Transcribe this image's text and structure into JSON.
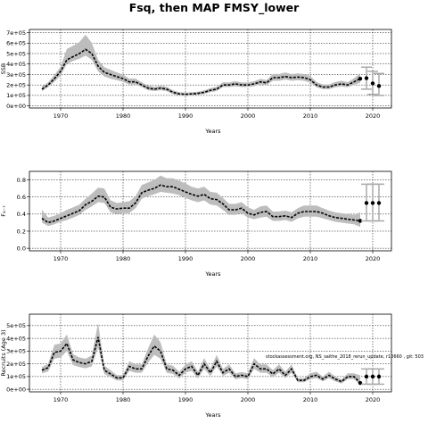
{
  "title": "Fsq, then MAP FMSY_lower",
  "annotation": "stockassessment.org, NS_saithe_2018_rerun_update, r10660 , git: 503",
  "colors": {
    "band": "#bdbdbd",
    "line": "#000000",
    "dots": "#000000",
    "interval": "#aaaaaa"
  },
  "chart_data": [
    {
      "type": "line",
      "ylabel": "SSB",
      "xlabel": "Years",
      "xlim": [
        1965,
        2023
      ],
      "ylim": [
        -20000,
        730000
      ],
      "xticks": [
        1970,
        1980,
        1990,
        2000,
        2010,
        2020
      ],
      "yticks": [
        0,
        100000,
        200000,
        300000,
        400000,
        500000,
        600000,
        700000
      ],
      "ytick_labels": [
        "0e+00",
        "1e+05",
        "2e+05",
        "3e+05",
        "4e+05",
        "5e+05",
        "6e+05",
        "7e+05"
      ],
      "grid": true,
      "x": [
        1967,
        1968,
        1969,
        1970,
        1971,
        1972,
        1973,
        1974,
        1975,
        1976,
        1977,
        1978,
        1979,
        1980,
        1981,
        1982,
        1983,
        1984,
        1985,
        1986,
        1987,
        1988,
        1989,
        1990,
        1991,
        1992,
        1993,
        1994,
        1995,
        1996,
        1997,
        1998,
        1999,
        2000,
        2001,
        2002,
        2003,
        2004,
        2005,
        2006,
        2007,
        2008,
        2009,
        2010,
        2011,
        2012,
        2013,
        2014,
        2015,
        2016,
        2017,
        2018
      ],
      "values": [
        160000,
        200000,
        260000,
        330000,
        440000,
        470000,
        500000,
        540000,
        500000,
        380000,
        320000,
        300000,
        280000,
        260000,
        230000,
        230000,
        200000,
        170000,
        160000,
        170000,
        160000,
        130000,
        115000,
        110000,
        115000,
        120000,
        130000,
        150000,
        160000,
        200000,
        200000,
        210000,
        200000,
        200000,
        210000,
        230000,
        220000,
        270000,
        270000,
        280000,
        270000,
        275000,
        270000,
        250000,
        200000,
        180000,
        180000,
        200000,
        210000,
        200000,
        230000,
        260000
      ],
      "lower": [
        140000,
        180000,
        230000,
        290000,
        400000,
        430000,
        450000,
        480000,
        440000,
        330000,
        280000,
        260000,
        245000,
        230000,
        205000,
        205000,
        180000,
        150000,
        142000,
        150000,
        140000,
        112000,
        100000,
        95000,
        100000,
        105000,
        115000,
        132000,
        142000,
        180000,
        180000,
        188000,
        180000,
        180000,
        188000,
        205000,
        198000,
        240000,
        240000,
        250000,
        240000,
        245000,
        240000,
        222000,
        178000,
        160000,
        160000,
        178000,
        185000,
        178000,
        200000,
        220000
      ],
      "upper": [
        185000,
        225000,
        295000,
        375000,
        545000,
        575000,
        610000,
        680000,
        600000,
        440000,
        370000,
        345000,
        320000,
        300000,
        260000,
        260000,
        225000,
        195000,
        182000,
        192000,
        182000,
        150000,
        132000,
        126000,
        130000,
        136000,
        148000,
        170000,
        182000,
        225000,
        224000,
        236000,
        224000,
        224000,
        236000,
        258000,
        246000,
        305000,
        305000,
        318000,
        304000,
        310000,
        305000,
        285000,
        228000,
        205000,
        205000,
        228000,
        240000,
        226000,
        265000,
        310000
      ],
      "forecast": {
        "x": [
          2019,
          2020,
          2021
        ],
        "values": [
          265000,
          215000,
          190000
        ],
        "lower": [
          160000,
          110000,
          100000
        ],
        "upper": [
          370000,
          330000,
          310000
        ]
      }
    },
    {
      "type": "line",
      "ylabel": "F₄₋₇",
      "xlabel": "Years",
      "xlim": [
        1965,
        2023
      ],
      "ylim": [
        -0.03,
        0.9
      ],
      "xticks": [
        1970,
        1980,
        1990,
        2000,
        2010,
        2020
      ],
      "yticks": [
        0.0,
        0.2,
        0.4,
        0.6,
        0.8
      ],
      "ytick_labels": [
        "0.0",
        "0.2",
        "0.4",
        "0.6",
        "0.8"
      ],
      "grid": true,
      "x": [
        1967,
        1968,
        1969,
        1970,
        1971,
        1972,
        1973,
        1974,
        1975,
        1976,
        1977,
        1978,
        1979,
        1980,
        1981,
        1982,
        1983,
        1984,
        1985,
        1986,
        1987,
        1988,
        1989,
        1990,
        1991,
        1992,
        1993,
        1994,
        1995,
        1996,
        1997,
        1998,
        1999,
        2000,
        2001,
        2002,
        2003,
        2004,
        2005,
        2006,
        2007,
        2008,
        2009,
        2010,
        2011,
        2012,
        2013,
        2014,
        2015,
        2016,
        2017,
        2018
      ],
      "values": [
        0.35,
        0.3,
        0.32,
        0.35,
        0.38,
        0.41,
        0.44,
        0.51,
        0.55,
        0.61,
        0.6,
        0.48,
        0.46,
        0.47,
        0.47,
        0.53,
        0.65,
        0.68,
        0.7,
        0.74,
        0.72,
        0.72,
        0.69,
        0.66,
        0.63,
        0.61,
        0.63,
        0.58,
        0.57,
        0.52,
        0.45,
        0.45,
        0.47,
        0.41,
        0.39,
        0.42,
        0.43,
        0.37,
        0.37,
        0.38,
        0.36,
        0.41,
        0.43,
        0.43,
        0.43,
        0.41,
        0.38,
        0.36,
        0.35,
        0.34,
        0.33,
        0.32
      ],
      "lower": [
        0.3,
        0.26,
        0.28,
        0.31,
        0.33,
        0.36,
        0.39,
        0.45,
        0.49,
        0.54,
        0.53,
        0.42,
        0.4,
        0.41,
        0.41,
        0.47,
        0.58,
        0.61,
        0.63,
        0.66,
        0.65,
        0.64,
        0.62,
        0.59,
        0.56,
        0.54,
        0.56,
        0.51,
        0.5,
        0.45,
        0.39,
        0.39,
        0.41,
        0.36,
        0.34,
        0.36,
        0.37,
        0.32,
        0.32,
        0.33,
        0.31,
        0.35,
        0.37,
        0.37,
        0.37,
        0.35,
        0.33,
        0.31,
        0.3,
        0.29,
        0.28,
        0.25
      ],
      "upper": [
        0.45,
        0.36,
        0.38,
        0.41,
        0.45,
        0.48,
        0.51,
        0.58,
        0.64,
        0.71,
        0.7,
        0.56,
        0.53,
        0.54,
        0.55,
        0.61,
        0.74,
        0.77,
        0.8,
        0.85,
        0.82,
        0.82,
        0.79,
        0.76,
        0.72,
        0.7,
        0.72,
        0.66,
        0.65,
        0.59,
        0.52,
        0.52,
        0.54,
        0.48,
        0.45,
        0.49,
        0.5,
        0.43,
        0.43,
        0.44,
        0.42,
        0.47,
        0.5,
        0.5,
        0.5,
        0.47,
        0.44,
        0.42,
        0.41,
        0.4,
        0.39,
        0.42
      ],
      "forecast": {
        "x": [
          2019,
          2020,
          2021
        ],
        "values": [
          0.53,
          0.53,
          0.53
        ],
        "lower": [
          0.32,
          0.32,
          0.32
        ],
        "upper": [
          0.75,
          0.75,
          0.75
        ]
      }
    },
    {
      "type": "line",
      "ylabel": "Recruits (Age 3)",
      "xlabel": "Years",
      "xlim": [
        1965,
        2023
      ],
      "ylim": [
        -20000,
        590000
      ],
      "xticks": [
        1970,
        1980,
        1990,
        2000,
        2010,
        2020
      ],
      "yticks": [
        0,
        100000,
        200000,
        300000,
        400000,
        500000
      ],
      "ytick_labels": [
        "0e+00",
        "1e+05",
        "2e+05",
        "3e+05",
        "4e+05",
        "5e+05"
      ],
      "grid": true,
      "x": [
        1967,
        1968,
        1969,
        1970,
        1971,
        1972,
        1973,
        1974,
        1975,
        1976,
        1977,
        1978,
        1979,
        1980,
        1981,
        1982,
        1983,
        1984,
        1985,
        1986,
        1987,
        1988,
        1989,
        1990,
        1991,
        1992,
        1993,
        1994,
        1995,
        1996,
        1997,
        1998,
        1999,
        2000,
        2001,
        2002,
        2003,
        2004,
        2005,
        2006,
        2007,
        2008,
        2009,
        2010,
        2011,
        2012,
        2013,
        2014,
        2015,
        2016,
        2017,
        2018
      ],
      "values": [
        150000,
        170000,
        290000,
        300000,
        360000,
        230000,
        210000,
        200000,
        220000,
        410000,
        150000,
        120000,
        90000,
        90000,
        180000,
        160000,
        160000,
        260000,
        340000,
        300000,
        160000,
        150000,
        110000,
        160000,
        180000,
        110000,
        200000,
        130000,
        220000,
        130000,
        160000,
        100000,
        110000,
        100000,
        200000,
        160000,
        160000,
        120000,
        160000,
        110000,
        160000,
        70000,
        70000,
        100000,
        110000,
        80000,
        110000,
        80000,
        60000,
        100000,
        100000,
        50000
      ],
      "lower": [
        125000,
        140000,
        240000,
        250000,
        300000,
        190000,
        175000,
        165000,
        180000,
        330000,
        120000,
        95000,
        70000,
        70000,
        145000,
        130000,
        130000,
        210000,
        270000,
        240000,
        130000,
        120000,
        85000,
        130000,
        145000,
        85000,
        160000,
        105000,
        180000,
        105000,
        130000,
        80000,
        88000,
        80000,
        160000,
        130000,
        130000,
        95000,
        130000,
        88000,
        130000,
        55000,
        55000,
        80000,
        88000,
        62000,
        88000,
        62000,
        45000,
        80000,
        80000,
        35000
      ],
      "upper": [
        175000,
        200000,
        350000,
        360000,
        430000,
        275000,
        250000,
        240000,
        265000,
        520000,
        185000,
        150000,
        112000,
        112000,
        220000,
        195000,
        195000,
        320000,
        430000,
        370000,
        195000,
        185000,
        138000,
        195000,
        220000,
        138000,
        245000,
        160000,
        270000,
        160000,
        195000,
        125000,
        135000,
        125000,
        245000,
        195000,
        195000,
        150000,
        195000,
        138000,
        195000,
        88000,
        88000,
        125000,
        138000,
        100000,
        138000,
        100000,
        78000,
        125000,
        125000,
        110000
      ],
      "forecast": {
        "x": [
          2019,
          2020,
          2021
        ],
        "values": [
          100000,
          100000,
          100000
        ],
        "lower": [
          40000,
          40000,
          40000
        ],
        "upper": [
          160000,
          160000,
          160000
        ]
      }
    }
  ]
}
